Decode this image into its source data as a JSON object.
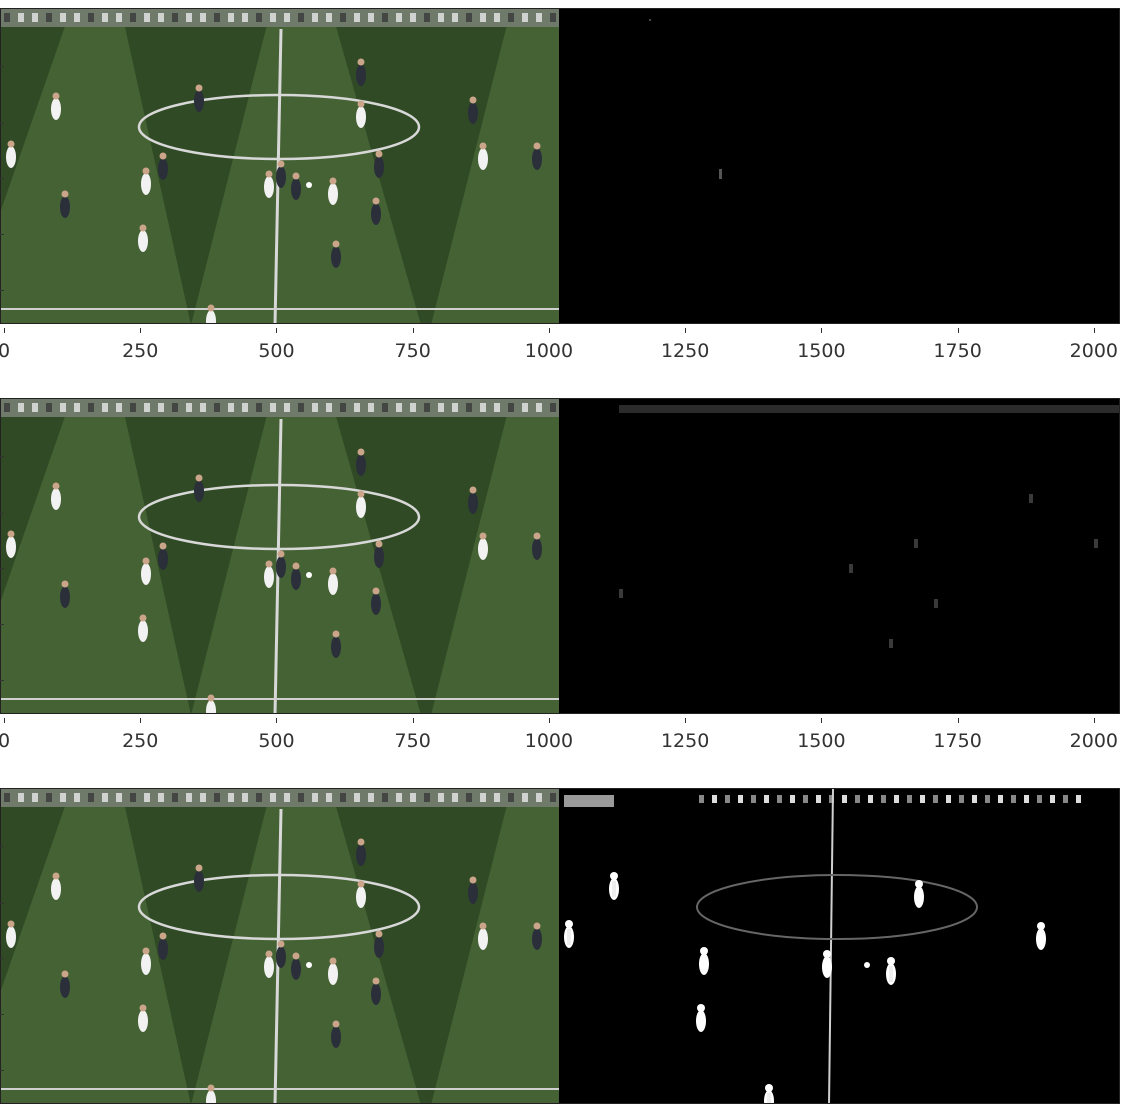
{
  "figure": {
    "panels": [
      {
        "id": "panel-1",
        "mask": "sparse"
      },
      {
        "id": "panel-2",
        "mask": "noisy"
      },
      {
        "id": "panel-3",
        "mask": "players"
      }
    ],
    "xaxis": {
      "range": [
        0,
        2048
      ],
      "ticks": [
        "0",
        "250",
        "500",
        "750",
        "1000",
        "1250",
        "1500",
        "1750",
        "2000"
      ]
    },
    "colors": {
      "pitch_dark": "#2f4a24",
      "pitch_light": "#4d6b3a",
      "mask_background": "#000000",
      "mask_foreground": "#ffffff"
    }
  }
}
